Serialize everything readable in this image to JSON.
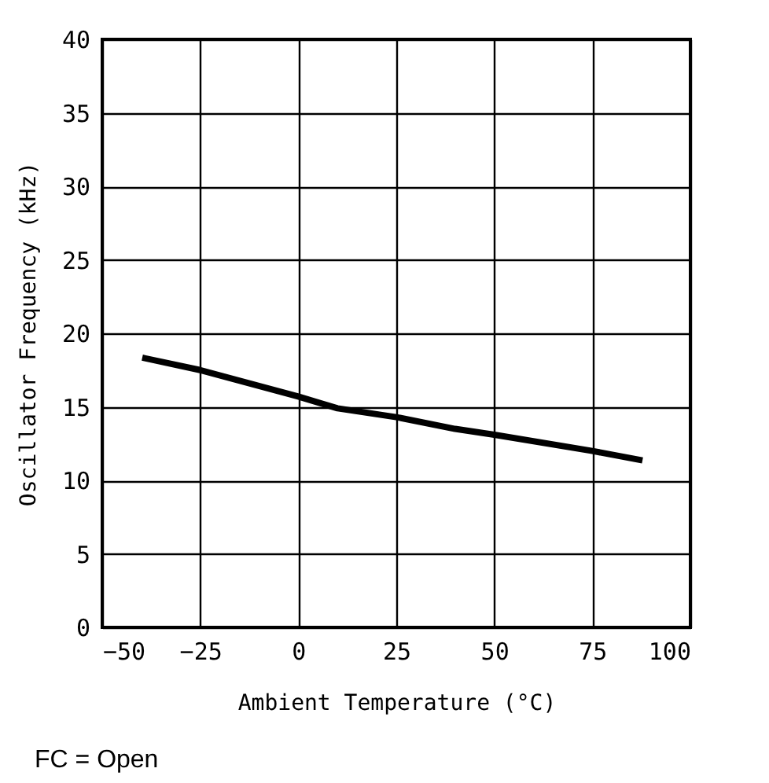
{
  "chart_data": {
    "type": "line",
    "xlabel": "Ambient Temperature (°C)",
    "ylabel": "Oscillator Frequency (kHz)",
    "x": [
      -39,
      -25,
      0,
      10,
      25,
      40,
      50,
      75,
      87
    ],
    "series": [
      {
        "color": "#000000",
        "values": [
          18.3,
          17.5,
          15.7,
          14.9,
          14.3,
          13.5,
          13.1,
          12.0,
          11.4
        ]
      }
    ],
    "xlim": [
      -50,
      100
    ],
    "xticks": [
      -50,
      -25,
      0,
      25,
      50,
      75,
      100
    ],
    "ylim": [
      0,
      40
    ],
    "yticks": [
      0,
      5,
      10,
      15,
      20,
      25,
      30,
      35,
      40
    ],
    "grid": true,
    "marker": "none",
    "line_style": "solid",
    "annotations": [
      "FC = Open"
    ]
  }
}
